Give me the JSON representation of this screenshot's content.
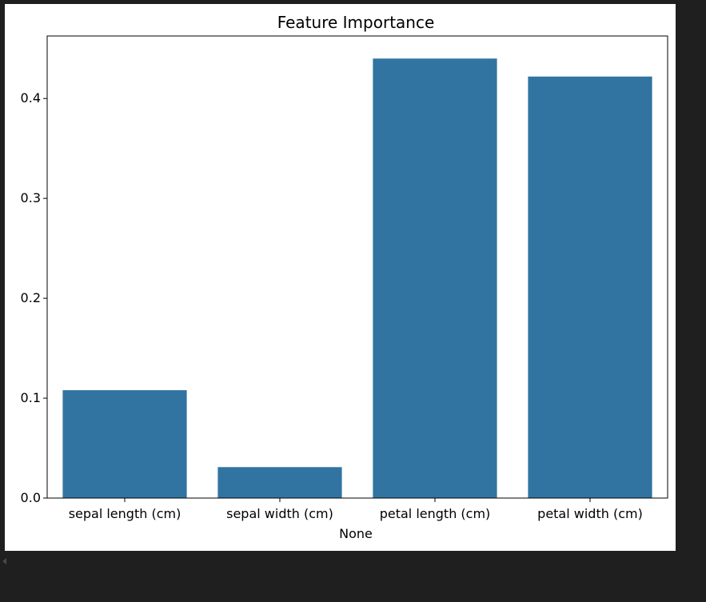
{
  "chart_data": {
    "type": "bar",
    "title": "Feature Importance",
    "xlabel": "None",
    "ylabel": "",
    "categories": [
      "sepal length (cm)",
      "sepal width (cm)",
      "petal length (cm)",
      "petal width (cm)"
    ],
    "values": [
      0.108,
      0.031,
      0.44,
      0.422
    ],
    "ylim": [
      0,
      0.4626
    ],
    "yticks": [
      0.0,
      0.1,
      0.2,
      0.3,
      0.4
    ],
    "ytick_labels": [
      "0.0",
      "0.1",
      "0.2",
      "0.3",
      "0.4"
    ],
    "grid": false,
    "bar_color": "#3274a1"
  }
}
